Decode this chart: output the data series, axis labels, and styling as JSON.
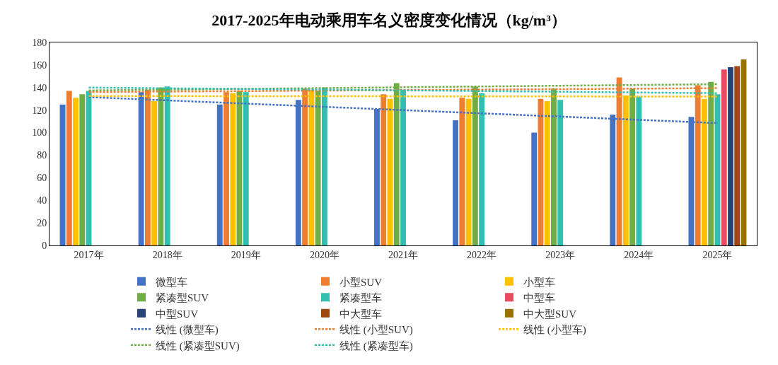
{
  "chart_data": {
    "type": "bar",
    "title": "2017-2025年电动乘用车名义密度变化情况（kg/m³）",
    "categories": [
      "2017年",
      "2018年",
      "2019年",
      "2020年",
      "2021年",
      "2022年",
      "2023年",
      "2024年",
      "2025年"
    ],
    "ylim": [
      0,
      180
    ],
    "yticks": [
      0,
      20,
      40,
      60,
      80,
      100,
      120,
      140,
      160,
      180
    ],
    "grid": false,
    "legend": "bottom",
    "series": [
      {
        "name": "微型车",
        "color": "#4472c4",
        "values": [
          125,
          136,
          125,
          129,
          121,
          111,
          100,
          116,
          114
        ]
      },
      {
        "name": "小型SUV",
        "color": "#ed7d31",
        "values": [
          137,
          138,
          136,
          139,
          134,
          131,
          130,
          149,
          142
        ]
      },
      {
        "name": "小型车",
        "color": "#ffc000",
        "values": [
          131,
          128,
          135,
          138,
          130,
          130,
          128,
          133,
          130
        ]
      },
      {
        "name": "紧凑型SUV",
        "color": "#70ad47",
        "values": [
          134,
          140,
          137,
          137,
          144,
          141,
          139,
          139,
          145
        ]
      },
      {
        "name": "紧凑型车",
        "color": "#33bfb0",
        "values": [
          137,
          141,
          136,
          140,
          138,
          135,
          129,
          132,
          134
        ]
      },
      {
        "name": "中型车",
        "color": "#e84a5f",
        "values": [
          null,
          null,
          null,
          null,
          null,
          null,
          null,
          null,
          156
        ]
      },
      {
        "name": "中型SUV",
        "color": "#264478",
        "values": [
          null,
          null,
          null,
          null,
          null,
          null,
          null,
          null,
          158
        ]
      },
      {
        "name": "中大型车",
        "color": "#9e480e",
        "values": [
          null,
          null,
          null,
          null,
          null,
          null,
          null,
          null,
          159
        ]
      },
      {
        "name": "中大型SUV",
        "color": "#997300",
        "values": [
          null,
          null,
          null,
          null,
          null,
          null,
          null,
          null,
          165
        ]
      },
      {
        "name": "线性 (微型车)",
        "type": "line",
        "line_style": "dotted",
        "color": "#4472c4",
        "x": [
          "2017年",
          "2025年"
        ],
        "values": [
          131.5,
          108.5
        ]
      },
      {
        "name": "线性 (小型SUV)",
        "type": "line",
        "line_style": "dotted",
        "color": "#ed7d31",
        "x": [
          "2017年",
          "2025年"
        ],
        "values": [
          136,
          139.5
        ]
      },
      {
        "name": "线性 (小型车)",
        "type": "line",
        "line_style": "dotted",
        "color": "#ffc000",
        "x": [
          "2017年",
          "2025年"
        ],
        "values": [
          132.5,
          132
        ]
      },
      {
        "name": "线性 (紧凑型SUV)",
        "type": "line",
        "line_style": "dotted",
        "color": "#70ad47",
        "x": [
          "2017年",
          "2025年"
        ],
        "values": [
          137.5,
          143
        ]
      },
      {
        "name": "线性 (紧凑型车)",
        "type": "line",
        "line_style": "dotted",
        "color": "#33bfb0",
        "x": [
          "2017年",
          "2025年"
        ],
        "values": [
          140,
          135
        ]
      }
    ]
  }
}
